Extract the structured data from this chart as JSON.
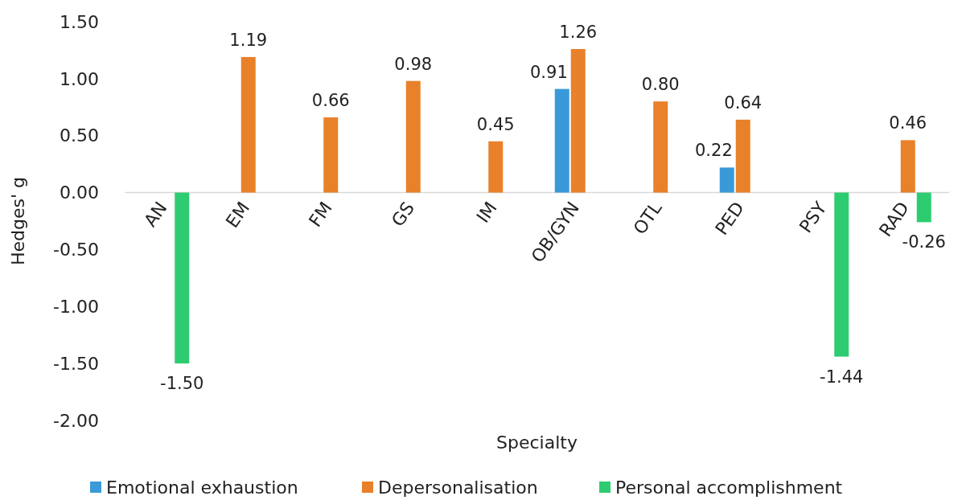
{
  "chart_data": {
    "type": "bar",
    "xlabel": "Specialty",
    "ylabel": "Hedges' g",
    "categories": [
      "AN",
      "EM",
      "FM",
      "GS",
      "IM",
      "OB/GYN",
      "OTL",
      "PED",
      "PSY",
      "RAD"
    ],
    "series": [
      {
        "name": "Emotional exhaustion",
        "color": "#3a9ad9",
        "values": [
          null,
          null,
          null,
          null,
          null,
          0.91,
          null,
          0.22,
          null,
          null
        ],
        "value_labels": [
          null,
          null,
          null,
          null,
          null,
          "0.91",
          null,
          "0.22",
          null,
          null
        ]
      },
      {
        "name": "Depersonalisation",
        "color": "#e8812a",
        "values": [
          null,
          1.19,
          0.66,
          0.98,
          0.45,
          1.26,
          0.8,
          0.64,
          null,
          0.46
        ],
        "value_labels": [
          null,
          "1.19",
          "0.66",
          "0.98",
          "0.45",
          "1.26",
          "0.80",
          "0.64",
          null,
          "0.46"
        ]
      },
      {
        "name": "Personal accomplishment",
        "color": "#2ecc71",
        "values": [
          -1.5,
          null,
          null,
          null,
          null,
          null,
          null,
          null,
          -1.44,
          -0.26
        ],
        "value_labels": [
          "-1.50",
          null,
          null,
          null,
          null,
          null,
          null,
          null,
          "-1.44",
          "-0.26"
        ]
      }
    ],
    "ylim": [
      -2,
      1.5
    ],
    "yticks": [
      {
        "value": -2,
        "label": "-2.00"
      },
      {
        "value": -1.5,
        "label": "-1.50"
      },
      {
        "value": -1,
        "label": "-1.00"
      },
      {
        "value": -0.5,
        "label": "-0.50"
      },
      {
        "value": 0,
        "label": "0.00"
      },
      {
        "value": 0.5,
        "label": "0.50"
      },
      {
        "value": 1,
        "label": "1.00"
      },
      {
        "value": 1.5,
        "label": "1.50"
      }
    ],
    "grid": false,
    "legend": "bottom"
  }
}
